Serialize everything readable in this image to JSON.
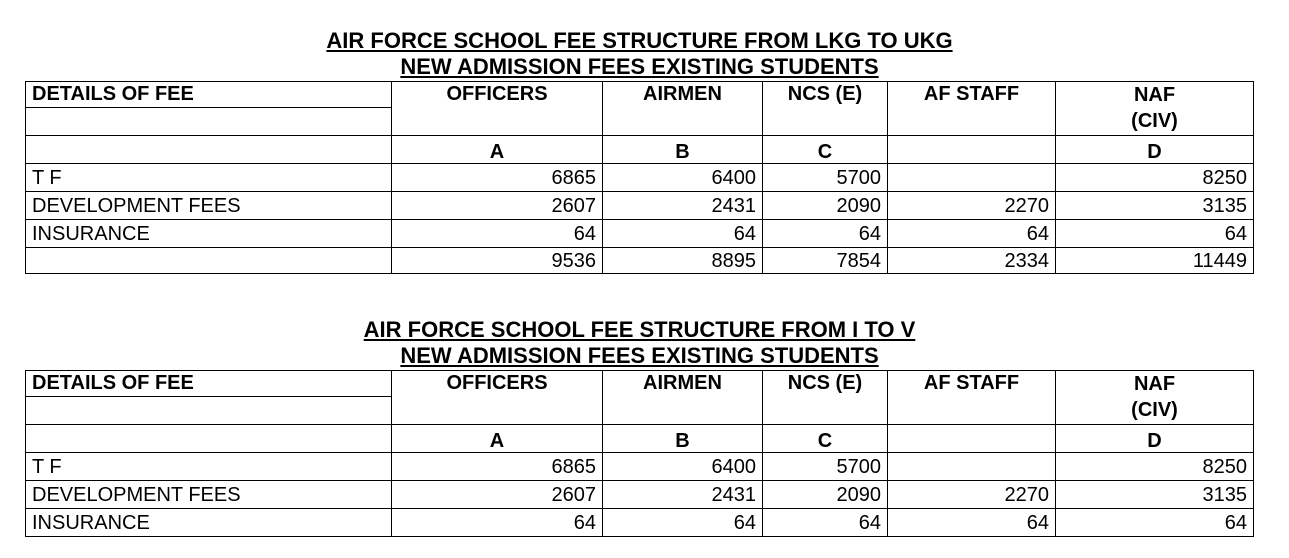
{
  "tables": [
    {
      "title": "AIR FORCE SCHOOL FEE STRUCTURE FROM LKG TO UKG",
      "subtitle": "NEW ADMISSION FEES EXISTING STUDENTS",
      "header": [
        "DETAILS OF FEE",
        "OFFICERS",
        "AIRMEN",
        "NCS (E)",
        "AF STAFF",
        "NAF (CIV)"
      ],
      "column_codes": [
        "A",
        "B",
        "C",
        null,
        "D"
      ],
      "rows": [
        [
          "T F",
          6865,
          6400,
          5700,
          null,
          8250
        ],
        [
          "DEVELOPMENT FEES",
          2607,
          2431,
          2090,
          2270,
          3135
        ],
        [
          "INSURANCE",
          64,
          64,
          64,
          64,
          64
        ]
      ],
      "total": [
        9536,
        8895,
        7854,
        2334,
        11449
      ]
    },
    {
      "title": "AIR FORCE SCHOOL FEE STRUCTURE FROM I TO V",
      "subtitle": "NEW ADMISSION FEES EXISTING STUDENTS",
      "header": [
        "DETAILS OF FEE",
        "OFFICERS",
        "AIRMEN",
        "NCS (E)",
        "AF STAFF",
        "NAF (CIV)"
      ],
      "column_codes": [
        "A",
        "B",
        "C",
        null,
        "D"
      ],
      "rows": [
        [
          "T F",
          6865,
          6400,
          5700,
          null,
          8250
        ],
        [
          "DEVELOPMENT FEES",
          2607,
          2431,
          2090,
          2270,
          3135
        ],
        [
          "INSURANCE",
          64,
          64,
          64,
          64,
          64
        ]
      ]
    }
  ]
}
